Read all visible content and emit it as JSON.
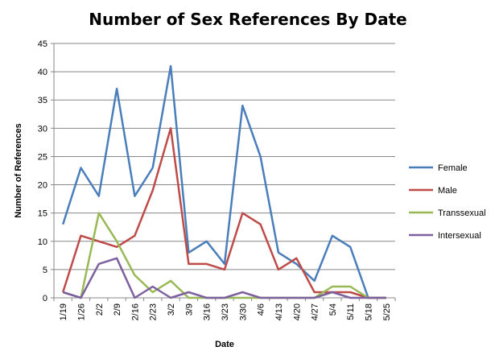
{
  "chart_data": {
    "type": "line",
    "title": "Number of Sex References By Date",
    "xlabel": "Date",
    "ylabel": "Number of References",
    "categories": [
      "1/19",
      "1/26",
      "2/2",
      "2/9",
      "2/16",
      "2/23",
      "3/2",
      "3/9",
      "3/16",
      "3/23",
      "3/30",
      "4/6",
      "4/13",
      "4/20",
      "4/27",
      "5/4",
      "5/11",
      "5/18",
      "5/25"
    ],
    "ylim": [
      0,
      45
    ],
    "yticks": [
      0,
      5,
      10,
      15,
      20,
      25,
      30,
      35,
      40,
      45
    ],
    "grid": true,
    "legend_position": "right",
    "series": [
      {
        "name": "Female",
        "color": "#4a7ebb",
        "values": [
          13,
          23,
          18,
          37,
          18,
          23,
          41,
          8,
          10,
          6,
          34,
          25,
          8,
          6,
          3,
          11,
          9,
          0,
          0
        ]
      },
      {
        "name": "Male",
        "color": "#be4b48",
        "values": [
          1,
          11,
          10,
          9,
          11,
          19,
          30,
          6,
          6,
          5,
          15,
          13,
          5,
          7,
          1,
          1,
          1,
          0,
          0
        ]
      },
      {
        "name": "Transsexual",
        "color": "#98b954",
        "values": [
          1,
          0,
          15,
          10,
          4,
          1,
          3,
          0,
          0,
          0,
          0,
          0,
          0,
          0,
          0,
          2,
          2,
          0,
          0
        ]
      },
      {
        "name": "Intersexual",
        "color": "#7d60a0",
        "values": [
          1,
          0,
          6,
          7,
          0,
          2,
          0,
          1,
          0,
          0,
          1,
          0,
          0,
          0,
          0,
          1,
          0,
          0,
          0
        ]
      }
    ]
  }
}
